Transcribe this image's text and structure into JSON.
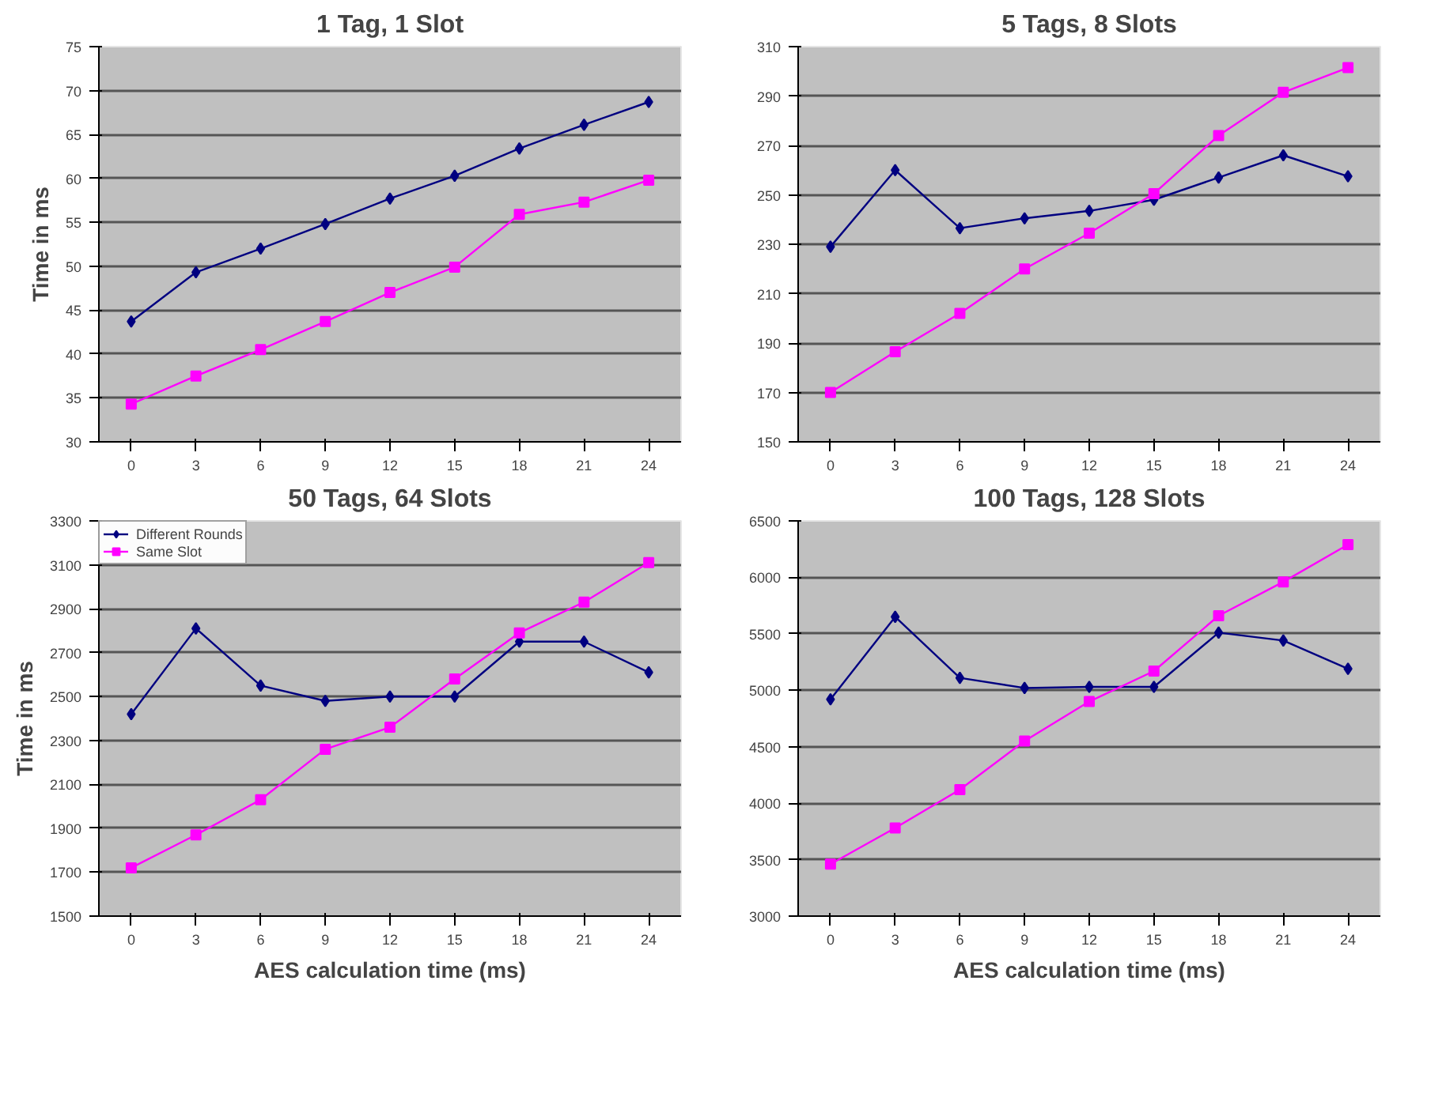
{
  "chart_data": [
    {
      "type": "line",
      "title": "1 Tag, 1 Slot",
      "ylabel": "Time in ms",
      "categories": [
        "0",
        "3",
        "6",
        "9",
        "12",
        "15",
        "18",
        "21",
        "24"
      ],
      "ylim": [
        30,
        75
      ],
      "yticks": [
        30,
        35,
        40,
        45,
        50,
        55,
        60,
        65,
        70,
        75
      ],
      "grid": "y",
      "legend": false,
      "series": [
        {
          "color": "#000080",
          "marker": "diamond",
          "values": [
            43.7,
            49.3,
            52,
            54.8,
            57.7,
            60.3,
            63.4,
            66.1,
            68.7
          ]
        },
        {
          "color": "#ff00ff",
          "marker": "square",
          "values": [
            34.3,
            37.5,
            40.5,
            43.7,
            47,
            49.9,
            55.9,
            57.3,
            59.8
          ]
        }
      ]
    },
    {
      "type": "line",
      "title": "5 Tags, 8 Slots",
      "categories": [
        "0",
        "3",
        "6",
        "9",
        "12",
        "15",
        "18",
        "21",
        "24"
      ],
      "ylim": [
        150,
        310
      ],
      "yticks": [
        150,
        170,
        190,
        210,
        230,
        250,
        270,
        290,
        310
      ],
      "grid": "y",
      "legend": false,
      "series": [
        {
          "color": "#000080",
          "marker": "diamond",
          "values": [
            229,
            260,
            236.5,
            240.5,
            243.5,
            248,
            257,
            266,
            257.5
          ]
        },
        {
          "color": "#ff00ff",
          "marker": "square",
          "values": [
            170,
            186.5,
            202,
            220,
            234.5,
            250.5,
            274,
            291.5,
            301.5
          ]
        }
      ]
    },
    {
      "type": "line",
      "title": "50 Tags, 64 Slots",
      "ylabel": "Time in ms",
      "xlabel": "AES calculation time (ms)",
      "categories": [
        "0",
        "3",
        "6",
        "9",
        "12",
        "15",
        "18",
        "21",
        "24"
      ],
      "ylim": [
        1500,
        3300
      ],
      "yticks": [
        1500,
        1700,
        1900,
        2100,
        2300,
        2500,
        2700,
        2900,
        3100,
        3300
      ],
      "grid": "y",
      "legend": "top left",
      "series": [
        {
          "name": "Different Rounds",
          "color": "#000080",
          "marker": "diamond",
          "values": [
            2420,
            2810,
            2550,
            2480,
            2500,
            2500,
            2750,
            2750,
            2610
          ]
        },
        {
          "name": "Same Slot",
          "color": "#ff00ff",
          "marker": "square",
          "values": [
            1720,
            1870,
            2030,
            2260,
            2360,
            2580,
            2790,
            2930,
            3110
          ]
        }
      ]
    },
    {
      "type": "line",
      "title": "100 Tags, 128 Slots",
      "xlabel": "AES calculation time (ms)",
      "categories": [
        "0",
        "3",
        "6",
        "9",
        "12",
        "15",
        "18",
        "21",
        "24"
      ],
      "ylim": [
        3000,
        6500
      ],
      "yticks": [
        3000,
        3500,
        4000,
        4500,
        5000,
        5500,
        6000,
        6500
      ],
      "grid": "y",
      "legend": false,
      "series": [
        {
          "color": "#000080",
          "marker": "diamond",
          "values": [
            4920,
            5650,
            5110,
            5020,
            5030,
            5030,
            5510,
            5440,
            5190
          ]
        },
        {
          "color": "#ff00ff",
          "marker": "square",
          "values": [
            3460,
            3780,
            4120,
            4550,
            4900,
            5170,
            5660,
            5960,
            6290
          ]
        }
      ]
    }
  ]
}
